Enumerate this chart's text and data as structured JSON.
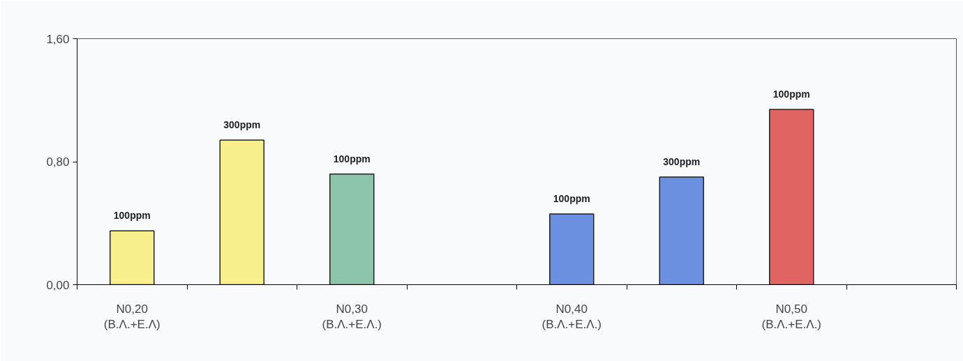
{
  "chart_data": {
    "type": "bar",
    "categories": [
      "N0,20\n(Β.Λ.+Ε.Λ)",
      null,
      "N0,30\n(Β.Λ.+Ε.Λ.)",
      null,
      "N0,40\n(Β.Λ.+Ε.Λ.)",
      null,
      "N0,50\n(Β.Λ.+Ε.Λ.)",
      null
    ],
    "series": [
      {
        "name": "100ppm",
        "colors": [
          "#f6ef8c",
          "#f6ef8c",
          "#8cc4ac",
          "#6b90e0",
          "#6b90e0",
          "#6b90e0",
          "#e06461",
          "#e06461"
        ],
        "values": [
          0.35,
          null,
          0.72,
          null,
          0.46,
          null,
          1.14,
          null
        ]
      },
      {
        "name": "300ppm",
        "colors": [
          "#f6ef8c",
          "#f6ef8c",
          "#8cc4ac",
          "#6b90e0",
          "#6b90e0",
          "#6b90e0",
          "#e06461",
          "#e06461"
        ],
        "values": [
          null,
          0.94,
          null,
          null,
          null,
          0.7,
          null,
          null
        ]
      }
    ],
    "ylim": [
      0,
      1.6
    ],
    "yticks": [
      {
        "value": 0,
        "label": "0,00"
      },
      {
        "value": 0.8,
        "label": "0,80"
      },
      {
        "value": 1.6,
        "label": "1,60"
      }
    ],
    "grid": false
  }
}
